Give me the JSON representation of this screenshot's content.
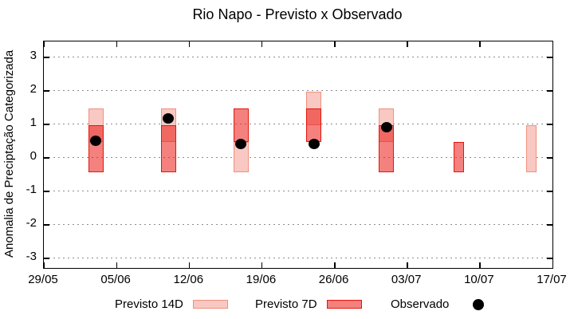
{
  "chart_data": {
    "type": "bar",
    "subtype": "forecast-range-boxes-with-observed-points",
    "title": "Rio Napo - Previsto x Observado",
    "xlabel": "",
    "ylabel": "Anomalia de Preciptação Categorizada",
    "x_tick_labels": [
      "29/05",
      "05/06",
      "12/06",
      "19/06",
      "26/06",
      "03/07",
      "10/07",
      "17/07"
    ],
    "x_tick_interval_days": 7,
    "x_range_days": 49,
    "y_ticks": [
      3,
      2,
      1,
      0,
      -1,
      -2,
      -3
    ],
    "ylim": [
      -3.3,
      3.45
    ],
    "grid": "horizontal-dotted",
    "legend_position": "bottom",
    "series": [
      {
        "name": "Previsto 14D",
        "marker": "box",
        "fill": "#f9c8c2",
        "border": "#f0907e"
      },
      {
        "name": "Previsto 7D",
        "marker": "box",
        "fill": "rgba(235,25,20,0.55)",
        "border": "#e3170d"
      },
      {
        "name": "Observado",
        "marker": "dot",
        "fill": "#000000"
      }
    ],
    "bars": [
      {
        "date": "03/06",
        "day_offset": 5,
        "previsto_14d": [
          0.45,
          1.45
        ],
        "previsto_7d": [
          -0.45,
          0.95
        ],
        "observado": 0.5
      },
      {
        "date": "10/06",
        "day_offset": 12,
        "previsto_14d": [
          0.45,
          1.45
        ],
        "previsto_7d": [
          -0.45,
          0.95
        ],
        "observado": 1.15
      },
      {
        "date": "17/06",
        "day_offset": 19,
        "previsto_14d": [
          -0.45,
          0.45
        ],
        "previsto_7d": [
          0.45,
          1.45
        ],
        "observado": 0.4
      },
      {
        "date": "24/06",
        "day_offset": 26,
        "previsto_14d": [
          0.95,
          1.95
        ],
        "previsto_7d": [
          0.45,
          1.45
        ],
        "observado": 0.4
      },
      {
        "date": "01/07",
        "day_offset": 33,
        "previsto_14d": [
          0.45,
          1.45
        ],
        "previsto_7d": [
          -0.45,
          0.95
        ],
        "observado": 0.9
      },
      {
        "date": "08/07",
        "day_offset": 40,
        "previsto_14d": null,
        "previsto_7d": [
          -0.45,
          0.45
        ],
        "observado": null
      },
      {
        "date": "15/07",
        "day_offset": 47,
        "previsto_14d": [
          -0.45,
          0.95
        ],
        "previsto_7d": null,
        "observado": null
      }
    ],
    "colors": {
      "axis": "#000000",
      "grid": "#8c8c8c",
      "background": "#ffffff"
    }
  }
}
